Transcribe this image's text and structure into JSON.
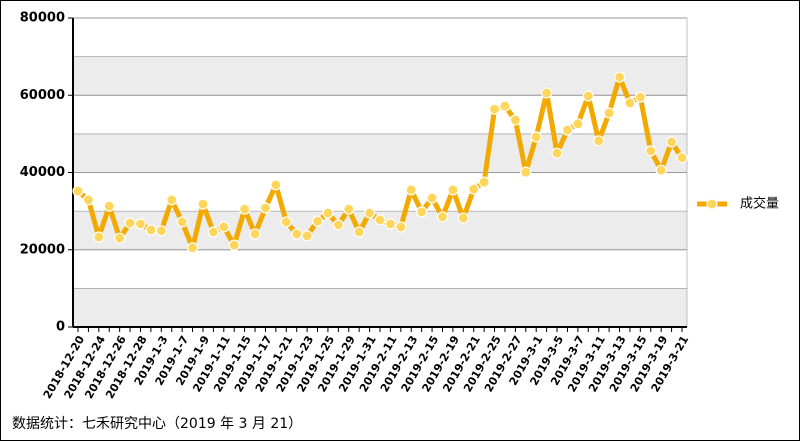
{
  "chart_data": {
    "type": "line",
    "categories": [
      "2018-12-20",
      null,
      "2018-12-24",
      null,
      "2018-12-26",
      null,
      "2018-12-28",
      null,
      "2019-1-3",
      null,
      "2019-1-7",
      null,
      "2019-1-9",
      null,
      "2019-1-11",
      null,
      "2019-1-15",
      null,
      "2019-1-17",
      null,
      "2019-1-21",
      null,
      "2019-1-23",
      null,
      "2019-1-25",
      null,
      "2019-1-29",
      null,
      "2019-1-31",
      null,
      "2019-2-11",
      null,
      "2019-2-13",
      null,
      "2019-2-15",
      null,
      "2019-2-19",
      null,
      "2019-2-21",
      null,
      "2019-2-25",
      null,
      "2019-2-27",
      null,
      "2019-3-1",
      null,
      "2019-3-5",
      null,
      "2019-3-7",
      null,
      "2019-3-11",
      null,
      "2019-3-13",
      null,
      "2019-3-15",
      null,
      "2019-3-19",
      null,
      "2019-3-21"
    ],
    "series": [
      {
        "name": "成交量",
        "color": "#f2a900",
        "values": [
          35200,
          32900,
          23300,
          31300,
          23000,
          26900,
          26700,
          25100,
          24900,
          32900,
          27200,
          20500,
          31800,
          24600,
          25900,
          21200,
          30500,
          24100,
          30800,
          36800,
          27200,
          24100,
          23600,
          27400,
          29500,
          26400,
          30500,
          24600,
          29500,
          27700,
          26700,
          25900,
          35500,
          29800,
          33400,
          28500,
          35500,
          28200,
          35700,
          37500,
          56400,
          57200,
          53600,
          40100,
          49200,
          60600,
          45000,
          51000,
          52600,
          59800,
          48200,
          55400,
          64700,
          58000,
          59500,
          45600,
          40600,
          47900,
          43800
        ]
      }
    ],
    "ylim": [
      0,
      80000
    ],
    "yticks": [
      0,
      20000,
      40000,
      60000,
      80000
    ],
    "grid": true,
    "legend": "right",
    "source": "数据统计：七禾研究中心（2019 年 3 月 21）"
  }
}
